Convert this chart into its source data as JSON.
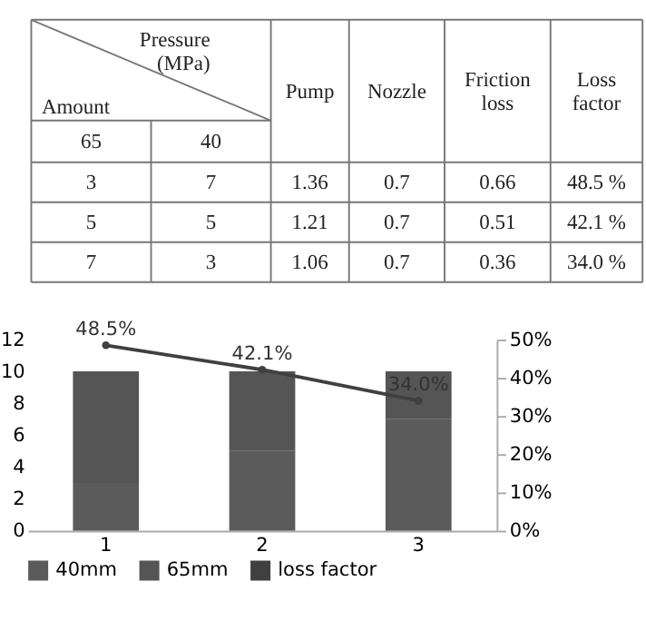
{
  "chart_data": [
    {
      "type": "other",
      "annotations": [
        "Pressure (MPa)",
        "Amount",
        "Pump",
        "Nozzle",
        "Friction loss",
        "Loss factor",
        "65",
        "40",
        "3",
        "7",
        "1.36",
        "0.7",
        "0.66",
        "48.5 %",
        "5",
        "5",
        "1.21",
        "0.7",
        "0.51",
        "42.1 %",
        "7",
        "3",
        "1.06",
        "0.7",
        "0.36",
        "34.0 %"
      ]
    },
    {
      "type": "bar",
      "categories": [
        "1",
        "2",
        "3"
      ],
      "stacked": true,
      "legend": "bottom",
      "marker": "circle",
      "ylim": [
        0,
        12
      ],
      "yticks": [
        0,
        2,
        4,
        6,
        8,
        10,
        12
      ],
      "y2lim": [
        0,
        50
      ],
      "y2ticks": [
        {
          "value": 0,
          "label": "0%"
        },
        {
          "value": 10,
          "label": "10%"
        },
        {
          "value": 20,
          "label": "20%"
        },
        {
          "value": 30,
          "label": "30%"
        },
        {
          "value": 40,
          "label": "40%"
        },
        {
          "value": 50,
          "label": "50%"
        }
      ],
      "series": [
        {
          "name": "40mm",
          "color": "#5b5b5b",
          "values": [
            3,
            5,
            7
          ]
        },
        {
          "name": "65mm",
          "color": "#555555",
          "values": [
            7,
            5,
            3
          ]
        },
        {
          "name": "loss factor",
          "type": "line",
          "axis": "y2",
          "color": "#404040",
          "values": [
            48.5,
            42.1,
            34.0
          ],
          "value_labels": [
            "48.5%",
            "42.1%",
            "34.0%"
          ]
        }
      ]
    }
  ]
}
